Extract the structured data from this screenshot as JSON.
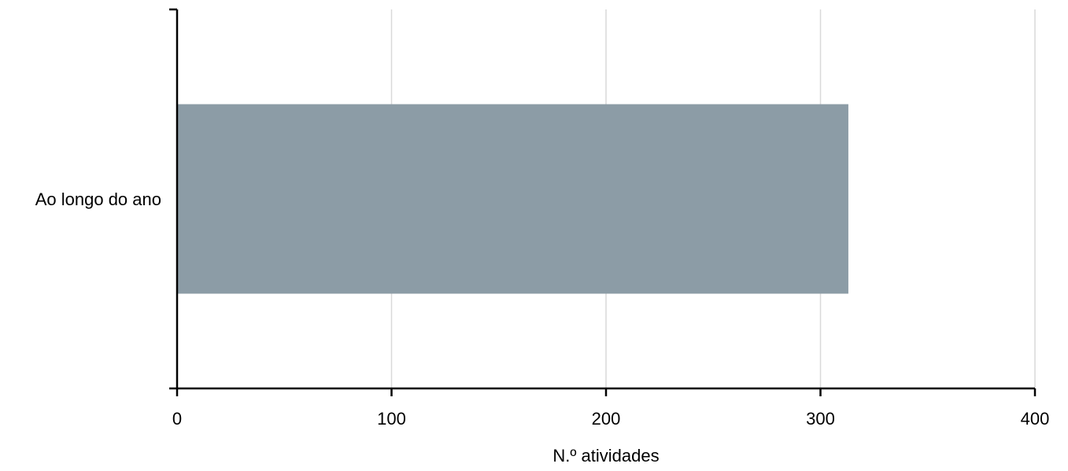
{
  "chart_data": {
    "type": "bar",
    "orientation": "horizontal",
    "categories": [
      "Ao longo do ano"
    ],
    "values": [
      313
    ],
    "xlabel": "N.º atividades",
    "ylabel": "",
    "xlim": [
      0,
      400
    ],
    "x_ticks": [
      0,
      100,
      200,
      300,
      400
    ],
    "grid": true,
    "legend": "none",
    "colors": {
      "bar": "#8c9ca6",
      "grid": "#d9d9d9",
      "axis": "#000000"
    }
  }
}
